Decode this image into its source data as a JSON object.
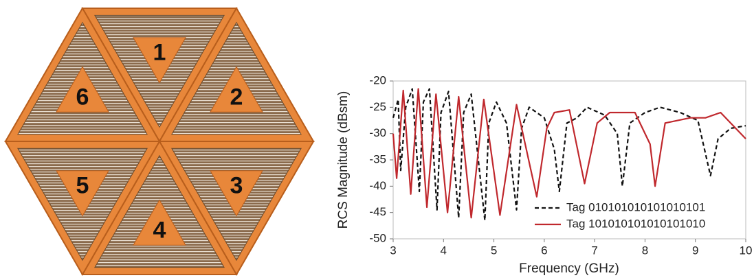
{
  "tag_image": {
    "labels": [
      "1",
      "2",
      "3",
      "4",
      "5",
      "6"
    ]
  },
  "chart_data": {
    "type": "line",
    "x_label": "Frequency (GHz)",
    "y_label": "RCS Magnitude (dBsm)",
    "xlim": [
      3,
      10
    ],
    "xticks": [
      3,
      4,
      5,
      6,
      7,
      8,
      9,
      10
    ],
    "ylim": [
      -50,
      -20
    ],
    "yticks": [
      -20,
      -25,
      -30,
      -35,
      -40,
      -45,
      -50
    ],
    "grid": false,
    "legend": "lower right",
    "series": [
      {
        "name": "Tag 010101010101010101",
        "color": "#111111",
        "dash": true,
        "x": [
          3,
          3.1,
          3.15,
          3.25,
          3.38,
          3.52,
          3.6,
          3.72,
          3.87,
          3.95,
          4.1,
          4.3,
          4.4,
          4.55,
          4.82,
          4.9,
          5.05,
          5.25,
          5.45,
          5.55,
          5.7,
          6.0,
          6.2,
          6.3,
          6.45,
          6.65,
          6.85,
          7.2,
          7.45,
          7.55,
          7.7,
          8.0,
          8.3,
          8.7,
          9.05,
          9.3,
          9.45,
          9.7,
          10
        ],
        "values": [
          -27,
          -23.5,
          -37,
          -25,
          -21.5,
          -41,
          -24,
          -21.5,
          -44.5,
          -26,
          -22,
          -46,
          -26,
          -22.5,
          -46.5,
          -28,
          -24,
          -28,
          -44.5,
          -29,
          -25,
          -27,
          -33,
          -41,
          -28,
          -27,
          -25,
          -26.5,
          -30,
          -40,
          -28,
          -26,
          -25,
          -26,
          -27.5,
          -38,
          -31,
          -29,
          -28.5
        ]
      },
      {
        "name": "Tag 101010101010101010",
        "color": "#c0282d",
        "dash": false,
        "x": [
          3,
          3.07,
          3.2,
          3.35,
          3.5,
          3.67,
          3.85,
          4.08,
          4.3,
          4.55,
          4.8,
          5.12,
          5.45,
          5.85,
          6.05,
          6.2,
          6.5,
          6.8,
          7.05,
          7.3,
          7.8,
          8.1,
          8.2,
          8.4,
          8.9,
          9.2,
          9.5,
          9.7,
          10
        ],
        "values": [
          -30,
          -38.5,
          -21.8,
          -41.5,
          -21.5,
          -44,
          -22.5,
          -45,
          -23,
          -46,
          -23.5,
          -45.5,
          -24.5,
          -42,
          -29,
          -26,
          -25.5,
          -39.5,
          -28,
          -26,
          -26,
          -32,
          -40,
          -28,
          -27,
          -27,
          -26,
          -28,
          -31
        ]
      }
    ]
  }
}
